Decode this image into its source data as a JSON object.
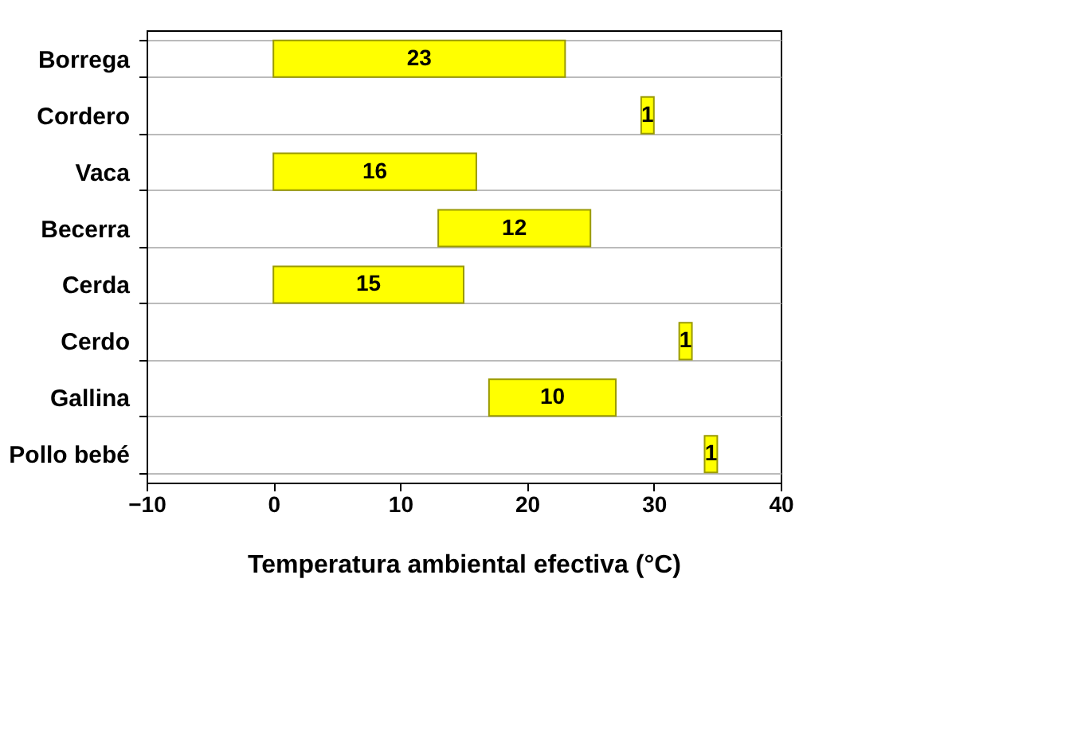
{
  "chart_data": {
    "type": "bar",
    "orientation": "horizontal",
    "categories": [
      "Borrega",
      "Cordero",
      "Vaca",
      "Becerra",
      "Cerda",
      "Cerdo",
      "Gallina",
      "Pollo bebé"
    ],
    "values": [
      23,
      1,
      16,
      12,
      15,
      1,
      10,
      1
    ],
    "base": [
      0,
      29,
      0,
      13,
      0,
      32,
      17,
      34
    ],
    "color": "#ffff00",
    "xlim": [
      -10,
      40
    ],
    "xticks": [
      -10,
      0,
      10,
      20,
      30,
      40
    ],
    "xlabel": "Temperatura ambiental efectiva (°C)",
    "grid": "y",
    "data_labels": true
  }
}
